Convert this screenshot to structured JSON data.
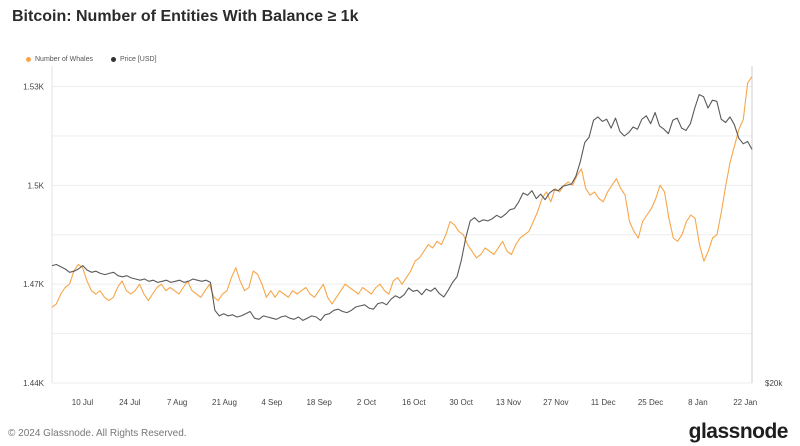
{
  "title": "Bitcoin: Number of Entities With Balance ≥ 1k",
  "legend": {
    "whales_label": "Number of Whales",
    "price_label": "Price [USD]"
  },
  "colors": {
    "whales": "#f7a64a",
    "price": "#5a5a5a",
    "grid": "#eeeeee"
  },
  "footer": {
    "copyright": "© 2024 Glassnode. All Rights Reserved.",
    "brand": "glassnode"
  },
  "chart_data": {
    "type": "line",
    "x_axis": {
      "start": "2023-07-01",
      "end": "2024-01-24",
      "ticks": [
        "10 Jul",
        "24 Jul",
        "7 Aug",
        "21 Aug",
        "4 Sep",
        "18 Sep",
        "2 Oct",
        "16 Oct",
        "30 Oct",
        "13 Nov",
        "27 Nov",
        "11 Dec",
        "25 Dec",
        "8 Jan",
        "22 Jan"
      ]
    },
    "y_left": {
      "ticks": [
        "1.44K",
        "1.47K",
        "1.5K",
        "1.53K"
      ],
      "tick_values": [
        1440,
        1470,
        1500,
        1530
      ],
      "range": [
        1440,
        1535
      ]
    },
    "y_right": {
      "ticks": [
        "$20k"
      ],
      "range": [
        20000,
        48000
      ]
    },
    "series": [
      {
        "name": "Number of Whales",
        "axis": "left",
        "values": [
          1463,
          1464,
          1467,
          1469,
          1470,
          1474,
          1476,
          1475,
          1471,
          1468,
          1467,
          1468,
          1466,
          1465,
          1466,
          1469,
          1471,
          1468,
          1467,
          1468,
          1470,
          1467,
          1465,
          1467,
          1469,
          1470,
          1468,
          1469,
          1468,
          1467,
          1469,
          1471,
          1468,
          1467,
          1466,
          1468,
          1470,
          1466,
          1465,
          1467,
          1468,
          1472,
          1475,
          1471,
          1468,
          1469,
          1474,
          1473,
          1470,
          1466,
          1468,
          1466,
          1468,
          1467,
          1466,
          1468,
          1467,
          1468,
          1469,
          1467,
          1466,
          1468,
          1470,
          1466,
          1464,
          1466,
          1468,
          1470,
          1469,
          1468,
          1467,
          1469,
          1468,
          1467,
          1469,
          1470,
          1468,
          1467,
          1471,
          1472,
          1470,
          1472,
          1474,
          1477,
          1478,
          1480,
          1482,
          1481,
          1483,
          1482,
          1485,
          1489,
          1488,
          1486,
          1485,
          1482,
          1480,
          1478,
          1479,
          1481,
          1480,
          1479,
          1481,
          1483,
          1480,
          1479,
          1482,
          1484,
          1485,
          1486,
          1489,
          1492,
          1496,
          1498,
          1495,
          1499,
          1498,
          1500,
          1501,
          1500,
          1503,
          1505,
          1499,
          1497,
          1498,
          1496,
          1495,
          1498,
          1500,
          1502,
          1499,
          1497,
          1489,
          1486,
          1484,
          1489,
          1491,
          1493,
          1496,
          1500,
          1498,
          1490,
          1484,
          1483,
          1485,
          1489,
          1491,
          1490,
          1482,
          1477,
          1480,
          1484,
          1485,
          1492,
          1500,
          1507,
          1512,
          1517,
          1520,
          1531,
          1533
        ]
      },
      {
        "name": "Price [USD]",
        "axis": "right",
        "values": [
          30500,
          30600,
          30400,
          30200,
          29900,
          30000,
          30200,
          30500,
          30100,
          29900,
          30000,
          29800,
          29700,
          29800,
          29900,
          29600,
          29500,
          29600,
          29400,
          29300,
          29200,
          29300,
          29100,
          29200,
          29000,
          29100,
          29200,
          29000,
          29100,
          29200,
          29000,
          29100,
          29300,
          29200,
          29100,
          29200,
          29000,
          26500,
          26000,
          26200,
          26000,
          26100,
          25900,
          26000,
          26200,
          26400,
          25800,
          25700,
          26000,
          25900,
          25800,
          25700,
          25900,
          26000,
          25800,
          25700,
          25900,
          25600,
          25800,
          26000,
          25900,
          25600,
          26100,
          26200,
          26500,
          26600,
          26400,
          26300,
          26500,
          26800,
          26900,
          27000,
          26700,
          26600,
          27100,
          27200,
          27000,
          27500,
          27800,
          27600,
          27900,
          28500,
          28200,
          28300,
          27900,
          28400,
          28200,
          28500,
          28000,
          27700,
          28300,
          29000,
          29500,
          31000,
          33000,
          34500,
          34800,
          34400,
          34600,
          34500,
          34700,
          35000,
          34800,
          35100,
          35500,
          35600,
          36200,
          37000,
          36800,
          37200,
          36500,
          36900,
          36400,
          37000,
          37300,
          37200,
          37600,
          37700,
          37800,
          38500,
          39800,
          41500,
          42000,
          43500,
          43800,
          43400,
          43600,
          42800,
          43700,
          42500,
          42100,
          42400,
          42900,
          42700,
          43600,
          43900,
          43200,
          44200,
          43000,
          42700,
          42300,
          43500,
          43700,
          42800,
          42600,
          43200,
          44600,
          45800,
          45600,
          44600,
          45300,
          45200,
          43600,
          43300,
          43800,
          43100,
          41900,
          41400,
          41600,
          40900
        ]
      }
    ]
  }
}
